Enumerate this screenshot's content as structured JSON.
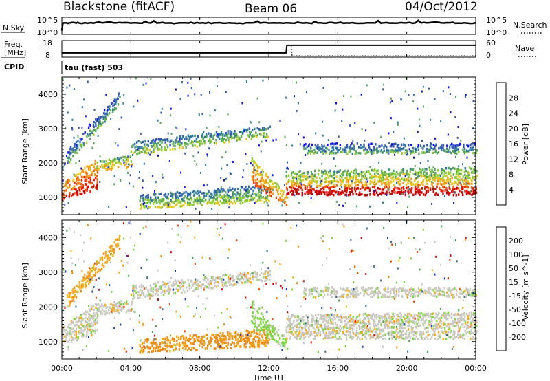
{
  "header": {
    "title": "Blackstone (fitACF)",
    "beam": "Beam 06",
    "date": "04/Oct/2012"
  },
  "panels": {
    "nsky": {
      "left_label": "N.Sky",
      "right_label": "N.Search",
      "ticks_left": [
        "10^5",
        "10^0"
      ],
      "ticks_right": [
        "10^5",
        "10^0"
      ]
    },
    "freq": {
      "left_label_line1": "Freq.",
      "left_label_line2": "[MHz]",
      "right_label": "Nave",
      "ticks_left": [
        "18",
        "8"
      ],
      "ticks_right": [
        "60",
        "0"
      ]
    },
    "cpid": {
      "label": "CPID",
      "value": "tau (fast) 503"
    }
  },
  "colors": {
    "power": [
      "#1010ee",
      "#3358b0",
      "#2f7aa0",
      "#56a65a",
      "#90cc30",
      "#e6c41a",
      "#f29610",
      "#ee5a06",
      "#e51e04",
      "#cc0000"
    ],
    "velocity": [
      "#e00a0a",
      "#ee4e06",
      "#f28a10",
      "#f4ac1e",
      "#c8c8c0",
      "#c8c8c0",
      "#7ed640",
      "#47a054",
      "#336a88",
      "#1a40b8"
    ]
  },
  "chart_data": [
    {
      "type": "line",
      "name": "N.Sky / N.Search",
      "x": [
        0.0,
        0.06,
        0.5,
        1,
        2,
        3,
        4,
        5,
        6,
        7,
        8,
        9,
        10,
        11,
        12,
        13,
        14,
        15,
        16,
        17,
        18,
        19,
        20,
        21,
        22,
        23,
        24
      ],
      "series": [
        {
          "name": "N.Sky",
          "values": [
            1.0,
            3.5,
            3.6,
            3.5,
            3.7,
            3.6,
            3.5,
            3.6,
            3.5,
            3.6,
            3.5,
            3.6,
            3.5,
            3.6,
            3.5,
            3.6,
            3.5,
            3.6,
            3.6,
            3.5,
            3.6,
            3.5,
            3.6,
            3.7,
            3.6,
            3.5,
            3.6
          ]
        }
      ],
      "ylim": [
        0,
        5
      ],
      "xlim": [
        0,
        24
      ]
    },
    {
      "type": "line",
      "name": "Freq / Nave",
      "x": [
        0.0,
        0.06,
        13.0,
        13.05,
        13.3,
        13.35,
        24
      ],
      "series": [
        {
          "name": "Freq.",
          "values": [
            10.0,
            10.3,
            10.3,
            15.3,
            15.3,
            15.3,
            15.3
          ]
        },
        {
          "name": "Nave",
          "values": [
            null,
            null,
            null,
            null,
            40.0,
            2.0,
            2.0
          ]
        }
      ],
      "ylim_left": [
        8,
        18
      ],
      "ylim_right": [
        0,
        60
      ],
      "xlim": [
        0,
        24
      ]
    },
    {
      "type": "heatmap",
      "title": "Power",
      "ylabel": "Slant Range [km]",
      "colorbar_label": "Power [dB]",
      "colorbar_ticks": [
        4,
        8,
        12,
        16,
        20,
        24,
        28
      ],
      "colorbar_range": [
        0,
        30
      ],
      "ylim": [
        500,
        4500
      ],
      "yticks": [
        1000,
        2000,
        3000,
        4000
      ],
      "xlim": [
        0,
        24
      ],
      "bands": [
        {
          "hours": [
            0.0,
            2.0
          ],
          "range_low": [
            950,
            1250
          ],
          "range_high": [
            1450,
            2150
          ],
          "power": 22
        },
        {
          "hours": [
            2.0,
            4.0
          ],
          "range_low": [
            1800,
            1900
          ],
          "range_high": [
            2100,
            2250
          ],
          "power": 14
        },
        {
          "hours": [
            4.0,
            12.0
          ],
          "range_low": [
            2250,
            2800
          ],
          "range_high": [
            2650,
            3100
          ],
          "power": 9
        },
        {
          "hours": [
            4.5,
            12.0
          ],
          "range_low": [
            700,
            900
          ],
          "range_high": [
            1100,
            1400
          ],
          "power": 10
        },
        {
          "hours": [
            0.3,
            3.3
          ],
          "range_low": [
            2000,
            3700
          ],
          "range_high": [
            2400,
            4100
          ],
          "power": 7
        },
        {
          "hours": [
            11.0,
            13.0
          ],
          "range_low": [
            1400,
            800
          ],
          "range_high": [
            2200,
            1100
          ],
          "power": 18
        },
        {
          "hours": [
            13.0,
            24.0
          ],
          "range_low": [
            1100,
            1100
          ],
          "range_high": [
            1350,
            1350
          ],
          "power": 27
        },
        {
          "hours": [
            13.0,
            24.0
          ],
          "range_low": [
            1350,
            1400
          ],
          "range_high": [
            1800,
            1900
          ],
          "power": 14
        },
        {
          "hours": [
            14.0,
            24.0
          ],
          "range_low": [
            2300,
            2300
          ],
          "range_high": [
            2600,
            2600
          ],
          "power": 6
        }
      ]
    },
    {
      "type": "heatmap",
      "title": "Velocity",
      "xlabel": "Time UT",
      "ylabel": "Slant Range [km]",
      "colorbar_label": "Velocity [m s^-1]",
      "colorbar_ticks": [
        -200,
        -100,
        -50,
        -15,
        15,
        50,
        100,
        200
      ],
      "xticks": [
        "00:00",
        "04:00",
        "08:00",
        "12:00",
        "16:00",
        "20:00",
        "00:00"
      ],
      "ylim": [
        500,
        4500
      ],
      "yticks": [
        1000,
        2000,
        3000,
        4000
      ],
      "xlim": [
        0,
        24
      ],
      "bands": [
        {
          "hours": [
            0.0,
            2.0
          ],
          "range_low": [
            950,
            1250
          ],
          "range_high": [
            1450,
            2150
          ],
          "velocity": 0
        },
        {
          "hours": [
            2.0,
            4.0
          ],
          "range_low": [
            1800,
            1900
          ],
          "range_high": [
            2100,
            2250
          ],
          "velocity": 0
        },
        {
          "hours": [
            4.0,
            12.0
          ],
          "range_low": [
            2250,
            2800
          ],
          "range_high": [
            2650,
            3100
          ],
          "velocity": 0
        },
        {
          "hours": [
            4.5,
            12.0
          ],
          "range_low": [
            700,
            900
          ],
          "range_high": [
            1100,
            1400
          ],
          "velocity": -60
        },
        {
          "hours": [
            0.3,
            3.3
          ],
          "range_low": [
            2000,
            3700
          ],
          "range_high": [
            2400,
            4100
          ],
          "velocity": -40
        },
        {
          "hours": [
            11.0,
            13.0
          ],
          "range_low": [
            1400,
            800
          ],
          "range_high": [
            2200,
            1100
          ],
          "velocity": 30
        },
        {
          "hours": [
            13.0,
            24.0
          ],
          "range_low": [
            1100,
            1100
          ],
          "range_high": [
            1350,
            1350
          ],
          "velocity": 0
        },
        {
          "hours": [
            13.0,
            24.0
          ],
          "range_low": [
            1350,
            1400
          ],
          "range_high": [
            1800,
            1900
          ],
          "velocity": 0
        },
        {
          "hours": [
            14.0,
            24.0
          ],
          "range_low": [
            2300,
            2300
          ],
          "range_high": [
            2600,
            2600
          ],
          "velocity": 0
        }
      ]
    }
  ]
}
